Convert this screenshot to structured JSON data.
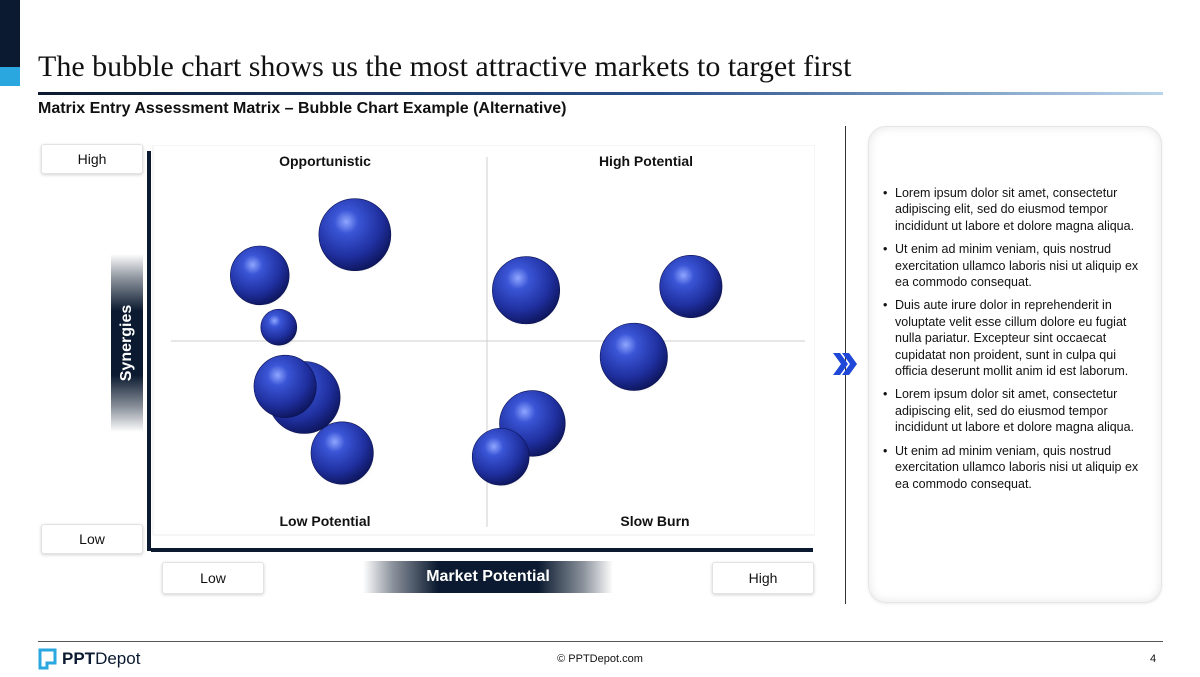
{
  "slide": {
    "title": "The bubble chart shows us the most attractive markets to target first",
    "subtitle": "Matrix Entry Assessment Matrix – Bubble Chart Example (Alternative)"
  },
  "axes": {
    "y_title": "Synergies",
    "y_high": "High",
    "y_low": "Low",
    "x_title": "Market Potential",
    "x_low": "Low",
    "x_high": "High"
  },
  "quadrants": {
    "top_left": "Opportunistic",
    "top_right": "High Potential",
    "bottom_left": "Low Potential",
    "bottom_right": "Slow Burn"
  },
  "chart_data": {
    "type": "scatter",
    "xlabel": "Market Potential",
    "ylabel": "Synergies",
    "xlim": [
      0,
      100
    ],
    "ylim": [
      0,
      100
    ],
    "bubble_color": "#1f2f9e",
    "points": [
      {
        "x": 29,
        "y": 79,
        "size": 2.4
      },
      {
        "x": 14,
        "y": 68,
        "size": 1.6
      },
      {
        "x": 17,
        "y": 54,
        "size": 0.6
      },
      {
        "x": 21,
        "y": 35,
        "size": 2.4
      },
      {
        "x": 18,
        "y": 38,
        "size": 1.8
      },
      {
        "x": 27,
        "y": 20,
        "size": 1.8
      },
      {
        "x": 56,
        "y": 64,
        "size": 2.1
      },
      {
        "x": 82,
        "y": 65,
        "size": 1.8
      },
      {
        "x": 73,
        "y": 46,
        "size": 2.1
      },
      {
        "x": 57,
        "y": 28,
        "size": 2.0
      },
      {
        "x": 52,
        "y": 19,
        "size": 1.5
      }
    ]
  },
  "panel": {
    "bullets": [
      "Lorem ipsum dolor sit amet, consectetur adipiscing elit, sed do eiusmod tempor incididunt ut labore et dolore magna aliqua.",
      "Ut enim ad minim veniam, quis nostrud exercitation ullamco laboris nisi ut aliquip ex ea commodo consequat.",
      "Duis aute irure dolor in reprehenderit in voluptate velit esse cillum dolore eu fugiat nulla pariatur. Excepteur sint occaecat cupidatat non proident, sunt in culpa qui officia deserunt mollit anim id est laborum.",
      "Lorem ipsum dolor sit amet, consectetur adipiscing elit, sed do eiusmod tempor incididunt ut labore et dolore magna aliqua.",
      "Ut enim ad minim veniam, quis nostrud exercitation ullamco laboris nisi ut aliquip ex ea commodo consequat."
    ]
  },
  "footer": {
    "logo_bold": "PPT",
    "logo_regular": "Depot",
    "copyright": "© PPTDepot.com",
    "page_number": "4"
  },
  "colors": {
    "navy": "#0b1a30",
    "accent_blue": "#2aa7df",
    "chevron_blue": "#1f47d8"
  }
}
